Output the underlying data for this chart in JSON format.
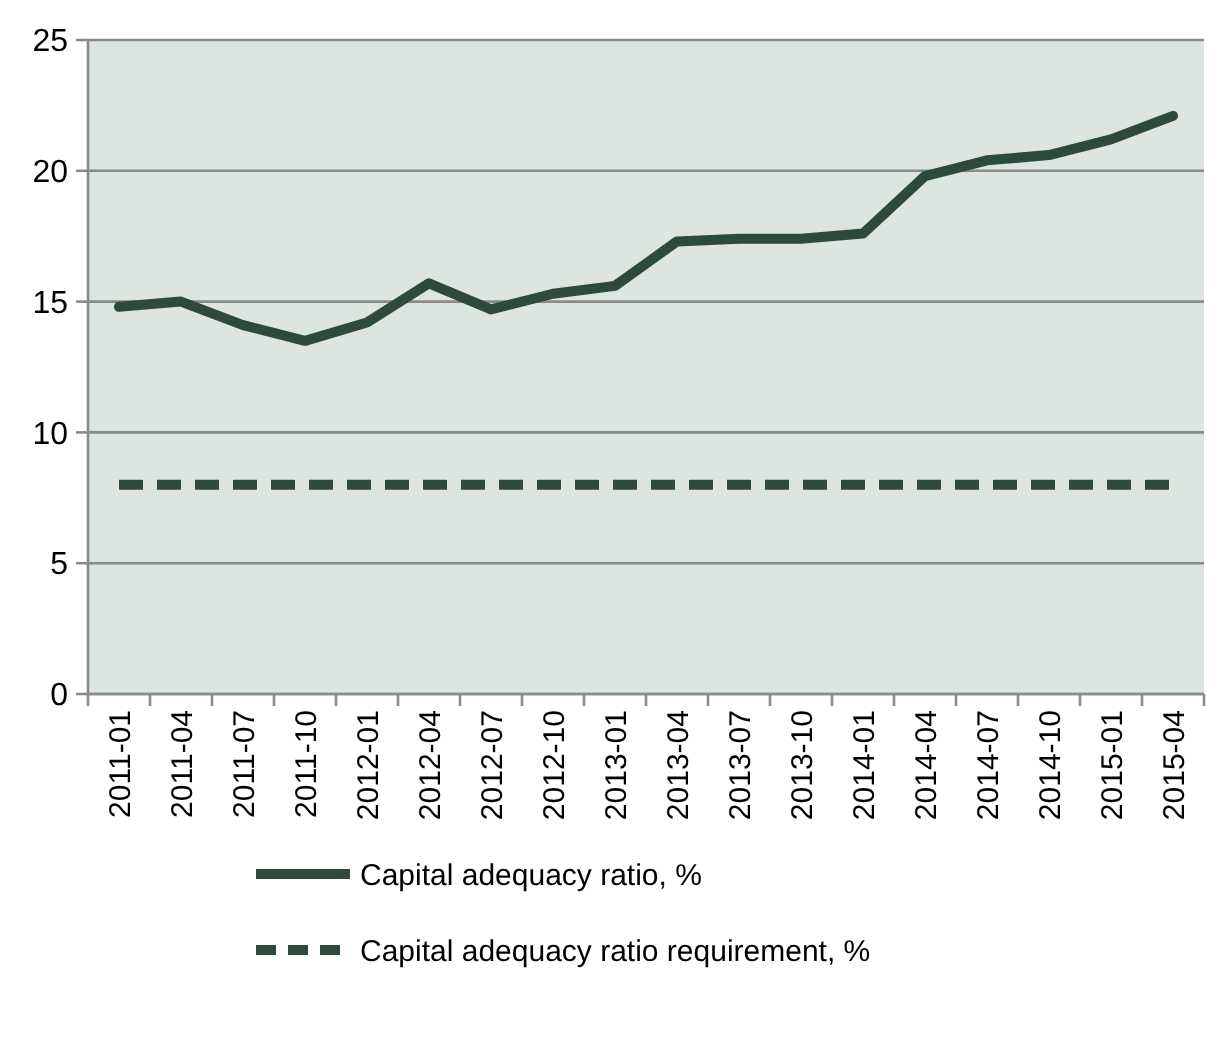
{
  "chart_data": {
    "type": "line",
    "categories": [
      "2011-01",
      "2011-04",
      "2011-07",
      "2011-10",
      "2012-01",
      "2012-04",
      "2012-07",
      "2012-10",
      "2013-01",
      "2013-04",
      "2013-07",
      "2013-10",
      "2014-01",
      "2014-04",
      "2014-07",
      "2014-10",
      "2015-01",
      "2015-04"
    ],
    "series": [
      {
        "name": "Capital adequacy ratio, %",
        "color": "#2d4a3c",
        "line_style": "solid",
        "values": [
          14.8,
          15.0,
          14.1,
          13.5,
          14.2,
          15.7,
          14.7,
          15.3,
          15.6,
          17.3,
          17.4,
          17.4,
          17.6,
          19.8,
          20.4,
          20.6,
          21.2,
          22.1
        ]
      },
      {
        "name": "Capital adequacy ratio requirement, %",
        "color": "#2d4a3c",
        "line_style": "dashed",
        "values": [
          8,
          8,
          8,
          8,
          8,
          8,
          8,
          8,
          8,
          8,
          8,
          8,
          8,
          8,
          8,
          8,
          8,
          8
        ]
      }
    ],
    "ylim": [
      0,
      25
    ],
    "yticks": [
      0,
      5,
      10,
      15,
      20,
      25
    ],
    "grid": "y",
    "legend": "bottom",
    "marker": "none"
  }
}
